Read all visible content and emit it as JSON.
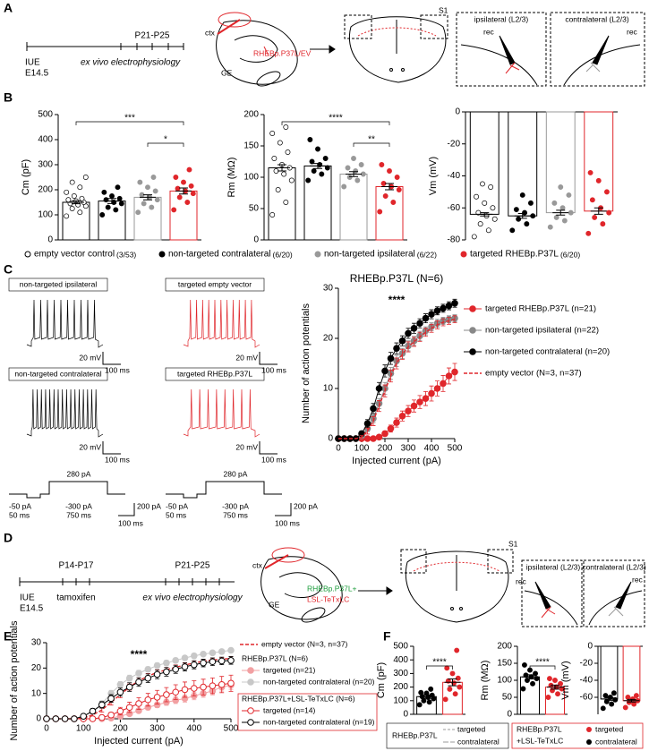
{
  "letters": [
    "A",
    "B",
    "C",
    "D",
    "E",
    "F"
  ],
  "panel_a": {
    "start": "IUE",
    "start_date": "E14.5",
    "mark": "P21-P25",
    "mark_label": "ex vivo electrophysiology",
    "ctx": "ctx",
    "ge": "GE",
    "construct": "RHEBp.P37L/EV",
    "region": "S1",
    "slices": [
      "ipsilateral (L2/3)",
      "contralateral (L2/3)"
    ],
    "rec": "rec"
  },
  "panel_b_legend": [
    {
      "name": "empty vector control",
      "count": "(3/53)",
      "color": "#000000",
      "marker": "open"
    },
    {
      "name": "non-targeted contralateral",
      "count": "(6/20)",
      "color": "#000000",
      "marker": "filled"
    },
    {
      "name": "non-targeted ipsilateral",
      "count": "(6/22)",
      "color": "#999999",
      "marker": "filled"
    },
    {
      "name": "targeted RHEBp.P37L",
      "count": "(6/20)",
      "color": "#e0262b",
      "marker": "filled"
    }
  ],
  "panel_c": {
    "traces": [
      {
        "label": "non-targeted ipsilateral",
        "color": "#000000"
      },
      {
        "label": "targeted empty vector",
        "color": "#e0262b"
      },
      {
        "label": "non-targeted contralateral",
        "color": "#000000"
      },
      {
        "label": "targeted RHEBp.P37L",
        "color": "#e0262b"
      }
    ],
    "scale_v": "20 mV",
    "scale_t": "100 ms",
    "step": "280 pA",
    "pre": "-50 pA",
    "pre_t": "50 ms",
    "hyper": "-300 pA",
    "step_t": "750 ms",
    "scale_i": "200 pA"
  },
  "panel_d": {
    "p1": "P14-P17",
    "p2": "P21-P25",
    "start": "IUE",
    "start_date": "E14.5",
    "drug": "tamoxifen",
    "mark_label": "ex vivo electrophysiology",
    "ctx": "ctx",
    "ge": "GE",
    "construct1": "RHEBp.P37L+",
    "construct2": "LSL-TeTxLC",
    "region": "S1",
    "slices": [
      "ipsilateral (L2/3)",
      "contralateral (L2/3)"
    ],
    "rec": "rec"
  },
  "panel_f_legend": {
    "g1": "RHEBp.P37L",
    "g1_items": [
      "targeted",
      "contralateral"
    ],
    "g2a": "RHEBp.P37L",
    "g2b": "+LSL-TeTxLC",
    "g2_items": [
      {
        "name": "targeted",
        "color": "#e0262b"
      },
      {
        "name": "contralateral",
        "color": "#000000"
      }
    ]
  },
  "chart_data": [
    {
      "type": "bar",
      "ylabel": "Cm (pF)",
      "ylim": [
        0,
        500
      ],
      "yticks": [
        0,
        100,
        200,
        300,
        400,
        500
      ],
      "values": [
        150,
        155,
        170,
        195
      ],
      "errors": [
        6,
        10,
        10,
        12
      ],
      "colors": [
        "#000000",
        "#000000",
        "#999999",
        "#e0262b"
      ],
      "markers": [
        "open",
        "filled",
        "filled",
        "filled"
      ],
      "points": [
        [
          95,
          110,
          125,
          135,
          140,
          145,
          150,
          155,
          160,
          165,
          175,
          190,
          210,
          230,
          250
        ],
        [
          100,
          120,
          130,
          145,
          150,
          160,
          165,
          175,
          190,
          210
        ],
        [
          110,
          130,
          145,
          160,
          170,
          180,
          195,
          210,
          230,
          250
        ],
        [
          120,
          150,
          170,
          185,
          195,
          205,
          215,
          230,
          250,
          280
        ]
      ],
      "significance": [
        {
          "groups": [
            0,
            3
          ],
          "label": "***"
        },
        {
          "groups": [
            2,
            3
          ],
          "label": "*"
        }
      ]
    },
    {
      "type": "bar",
      "ylabel": "Rm (MΩ)",
      "ylim": [
        0,
        200
      ],
      "yticks": [
        0,
        50,
        100,
        150,
        200
      ],
      "values": [
        115,
        118,
        105,
        85
      ],
      "errors": [
        5,
        4,
        4,
        5
      ],
      "colors": [
        "#000000",
        "#000000",
        "#999999",
        "#e0262b"
      ],
      "markers": [
        "open",
        "filled",
        "filled",
        "filled"
      ],
      "points": [
        [
          40,
          60,
          80,
          95,
          105,
          110,
          115,
          120,
          130,
          140,
          155,
          170,
          180
        ],
        [
          95,
          105,
          110,
          115,
          120,
          125,
          130,
          145,
          160
        ],
        [
          85,
          95,
          100,
          105,
          110,
          115,
          120,
          130
        ],
        [
          45,
          60,
          70,
          80,
          85,
          90,
          100,
          110,
          120
        ]
      ],
      "significance": [
        {
          "groups": [
            0,
            3
          ],
          "label": "****"
        },
        {
          "groups": [
            2,
            3
          ],
          "label": "**"
        }
      ]
    },
    {
      "type": "bar",
      "ylabel": "Vm (mV)",
      "ylim": [
        -80,
        0
      ],
      "yticks": [
        0,
        -20,
        -40,
        -60,
        -80
      ],
      "values": [
        -64,
        -65,
        -63,
        -62
      ],
      "errors": [
        1,
        1.5,
        1.5,
        2
      ],
      "colors": [
        "#000000",
        "#000000",
        "#999999",
        "#e0262b"
      ],
      "markers": [
        "open",
        "filled",
        "filled",
        "filled"
      ],
      "points": [
        [
          -78,
          -74,
          -70,
          -67,
          -65,
          -63,
          -60,
          -57,
          -53,
          -47,
          -45
        ],
        [
          -74,
          -70,
          -67,
          -65,
          -63,
          -61,
          -57,
          -52
        ],
        [
          -72,
          -68,
          -66,
          -63,
          -60,
          -57,
          -52,
          -47
        ],
        [
          -76,
          -70,
          -66,
          -63,
          -60,
          -55,
          -50,
          -43,
          -38
        ]
      ]
    },
    {
      "type": "line",
      "title": "RHEBp.P37L (N=6)",
      "annotation": "****",
      "xlabel": "Injected current (pA)",
      "ylabel": "Number of action potentials",
      "xlim": [
        0,
        500
      ],
      "xticks": [
        0,
        100,
        200,
        300,
        400,
        500
      ],
      "ylim": [
        0,
        30
      ],
      "yticks": [
        0,
        10,
        20,
        30
      ],
      "x": [
        0,
        25,
        50,
        75,
        100,
        125,
        150,
        175,
        200,
        225,
        250,
        275,
        300,
        325,
        350,
        375,
        400,
        425,
        450,
        475,
        500
      ],
      "series": [
        {
          "name": "targeted RHEBp.P37L (n=21)",
          "color": "#e0262b",
          "style": "solid",
          "marker": "filled",
          "values": [
            0,
            0,
            0,
            0,
            0,
            0,
            0,
            0.3,
            1,
            2,
            3.2,
            4.5,
            5.5,
            6.5,
            7.3,
            8,
            9,
            10,
            11,
            12.5,
            13.3
          ],
          "errors": [
            0,
            0,
            0,
            0,
            0,
            0,
            0,
            0.3,
            0.5,
            0.7,
            0.9,
            1,
            1.1,
            1.2,
            1.3,
            1.4,
            1.5,
            1.5,
            1.6,
            1.6,
            1.7
          ]
        },
        {
          "name": "non-targeted ipsilateral (n=22)",
          "color": "#888888",
          "style": "solid",
          "marker": "filled",
          "values": [
            0,
            0,
            0,
            0,
            0.5,
            2,
            4,
            7,
            10,
            13,
            15.5,
            17,
            18.5,
            19.5,
            20.5,
            21.5,
            22.3,
            23,
            23.5,
            23.8,
            24
          ],
          "errors": [
            0,
            0,
            0,
            0,
            0.3,
            0.6,
            0.8,
            1,
            1.2,
            1.2,
            1.1,
            1,
            1,
            0.9,
            0.9,
            0.8,
            0.8,
            0.8,
            0.7,
            0.7,
            0.7
          ]
        },
        {
          "name": "non-targeted contralateral (n=20)",
          "color": "#000000",
          "style": "solid",
          "marker": "filled",
          "values": [
            0,
            0,
            0,
            0,
            1,
            3,
            6,
            10,
            13.5,
            16,
            18,
            19.5,
            21,
            22,
            23,
            24,
            24.8,
            25.5,
            26,
            26.5,
            27
          ],
          "errors": [
            0,
            0,
            0,
            0,
            0.5,
            0.8,
            1,
            1.2,
            1.2,
            1.2,
            1.1,
            1,
            1,
            1,
            0.9,
            0.9,
            0.9,
            0.8,
            0.8,
            0.8,
            0.8
          ]
        },
        {
          "name": "empty vector (N=3, n=37)",
          "color": "#e0262b",
          "style": "dashed",
          "marker": "none",
          "values": [
            0,
            0,
            0,
            0,
            0.3,
            1.5,
            3.5,
            6.5,
            9.5,
            12.5,
            15,
            16.8,
            18.3,
            19.3,
            20.3,
            21.2,
            22,
            22.7,
            23.2,
            23.5,
            23.8
          ],
          "errors": [
            0,
            0,
            0,
            0,
            0.3,
            0.6,
            0.9,
            1.1,
            1.2,
            1.2,
            1.1,
            1,
            1,
            0.9,
            0.9,
            0.8,
            0.8,
            0.8,
            0.7,
            0.7,
            0.7
          ]
        }
      ]
    },
    {
      "type": "line",
      "annotation": "****",
      "xlabel": "Injected current (pA)",
      "ylabel": "Number of action potentials",
      "xlim": [
        0,
        500
      ],
      "xticks": [
        0,
        100,
        200,
        300,
        400,
        500
      ],
      "ylim": [
        0,
        30
      ],
      "yticks": [
        0,
        10,
        20,
        30
      ],
      "x": [
        0,
        25,
        50,
        75,
        100,
        125,
        150,
        175,
        200,
        225,
        250,
        275,
        300,
        325,
        350,
        375,
        400,
        425,
        450,
        475,
        500
      ],
      "legend_groups": [
        {
          "title": "RHEBp.P37L (N=6)"
        },
        {
          "title": "RHEBp.P37L+LSL-TeTxLC (N=6)"
        }
      ],
      "series": [
        {
          "name": "empty vector (N=3, n=37)",
          "color": "#e0262b",
          "style": "dashed",
          "marker": "none",
          "values": [
            0,
            0,
            0,
            0,
            0.3,
            1.5,
            3.5,
            6.5,
            9.5,
            12.5,
            15,
            16.8,
            18.3,
            19.3,
            20.3,
            21.2,
            22,
            22.7,
            23.2,
            23.5,
            23.8
          ],
          "errors": [
            0,
            0,
            0,
            0,
            0.3,
            0.6,
            0.9,
            1.1,
            1.2,
            1.2,
            1.1,
            1,
            1,
            0.9,
            0.9,
            0.8,
            0.8,
            0.8,
            0.7,
            0.7,
            0.7
          ]
        },
        {
          "name": "targeted (n=21)",
          "legend_group": 0,
          "color": "#f2a0a2",
          "style": "solid",
          "marker": "filled",
          "values": [
            0,
            0,
            0,
            0,
            0,
            0,
            0,
            0.3,
            1,
            2,
            3.2,
            4.5,
            5.5,
            6.5,
            7.3,
            8,
            9,
            10,
            11,
            12.5,
            13.3
          ],
          "errors": [
            0,
            0,
            0,
            0,
            0,
            0,
            0,
            0.3,
            0.5,
            0.7,
            0.9,
            1,
            1.1,
            1.2,
            1.3,
            1.4,
            1.5,
            1.5,
            1.6,
            1.6,
            1.7
          ]
        },
        {
          "name": "non-targeted contralateral (n=20)",
          "legend_group": 0,
          "color": "#c8c8c8",
          "style": "solid",
          "marker": "filled",
          "values": [
            0,
            0,
            0,
            0,
            1,
            3,
            6,
            10,
            13.5,
            16,
            18,
            19.5,
            21,
            22,
            23,
            24,
            24.8,
            25.5,
            26,
            26.5,
            27
          ],
          "errors": [
            0,
            0,
            0,
            0,
            0.5,
            0.8,
            1,
            1.2,
            1.2,
            1.2,
            1.1,
            1,
            1,
            1,
            0.9,
            0.9,
            0.9,
            0.8,
            0.8,
            0.8,
            0.8
          ]
        },
        {
          "name": "targeted (n=14)",
          "legend_group": 1,
          "color": "#e0262b",
          "style": "solid",
          "marker": "open",
          "values": [
            0,
            0,
            0,
            0,
            0,
            0,
            0.5,
            1.5,
            3,
            4.5,
            6,
            7.5,
            8.5,
            9.5,
            10.5,
            11.5,
            12,
            12.5,
            13,
            13.5,
            14
          ],
          "errors": [
            0,
            0,
            0,
            0,
            0,
            0,
            0.5,
            1,
            1.5,
            2,
            2.3,
            2.5,
            2.7,
            2.8,
            2.9,
            3,
            3,
            3.1,
            3.1,
            3.2,
            3.2
          ]
        },
        {
          "name": "non-targeted contralateral (n=19)",
          "legend_group": 1,
          "color": "#000000",
          "style": "solid",
          "marker": "open",
          "values": [
            0,
            0,
            0,
            0,
            1,
            3,
            5.5,
            8,
            10.5,
            12.5,
            14.5,
            16,
            17.5,
            18.5,
            19.5,
            20.5,
            21.3,
            22,
            22.5,
            22.8,
            23
          ],
          "errors": [
            0,
            0,
            0,
            0,
            0.5,
            1,
            1.3,
            1.5,
            1.6,
            1.7,
            1.7,
            1.7,
            1.7,
            1.7,
            1.6,
            1.6,
            1.6,
            1.5,
            1.5,
            1.5,
            1.5
          ]
        }
      ]
    },
    {
      "type": "bar",
      "ylabel": "Cm (pF)",
      "ylim": [
        0,
        500
      ],
      "yticks": [
        0,
        100,
        200,
        300,
        400,
        500
      ],
      "values": [
        130,
        235
      ],
      "errors": [
        12,
        25
      ],
      "colors": [
        "#000000",
        "#e0262b"
      ],
      "markers": [
        "filled",
        "filled"
      ],
      "points": [
        [
          70,
          90,
          100,
          115,
          125,
          130,
          140,
          155,
          160,
          185
        ],
        [
          110,
          150,
          185,
          200,
          230,
          245,
          265,
          300,
          340,
          470
        ]
      ],
      "significance": [
        {
          "groups": [
            0,
            1
          ],
          "label": "****"
        }
      ]
    },
    {
      "type": "bar",
      "ylabel": "Rm (MΩ)",
      "ylim": [
        0,
        200
      ],
      "yticks": [
        0,
        50,
        100,
        150,
        200
      ],
      "values": [
        110,
        80
      ],
      "errors": [
        6,
        6
      ],
      "colors": [
        "#000000",
        "#e0262b"
      ],
      "markers": [
        "filled",
        "filled"
      ],
      "points": [
        [
          75,
          90,
          100,
          105,
          110,
          115,
          120,
          130,
          145
        ],
        [
          50,
          60,
          70,
          75,
          80,
          85,
          90,
          100,
          105
        ]
      ],
      "significance": [
        {
          "groups": [
            0,
            1
          ],
          "label": "****"
        }
      ]
    },
    {
      "type": "bar",
      "ylabel": "Vm (mV)",
      "ylim": [
        -80,
        0
      ],
      "yticks": [
        0,
        -20,
        -40,
        -60
      ],
      "values": [
        -62,
        -64
      ],
      "errors": [
        1.5,
        1.5
      ],
      "colors": [
        "#000000",
        "#e0262b"
      ],
      "markers": [
        "filled",
        "filled"
      ],
      "points": [
        [
          -73,
          -68,
          -65,
          -63,
          -60,
          -58,
          -55
        ],
        [
          -72,
          -68,
          -66,
          -64,
          -62,
          -60,
          -58
        ]
      ]
    }
  ]
}
